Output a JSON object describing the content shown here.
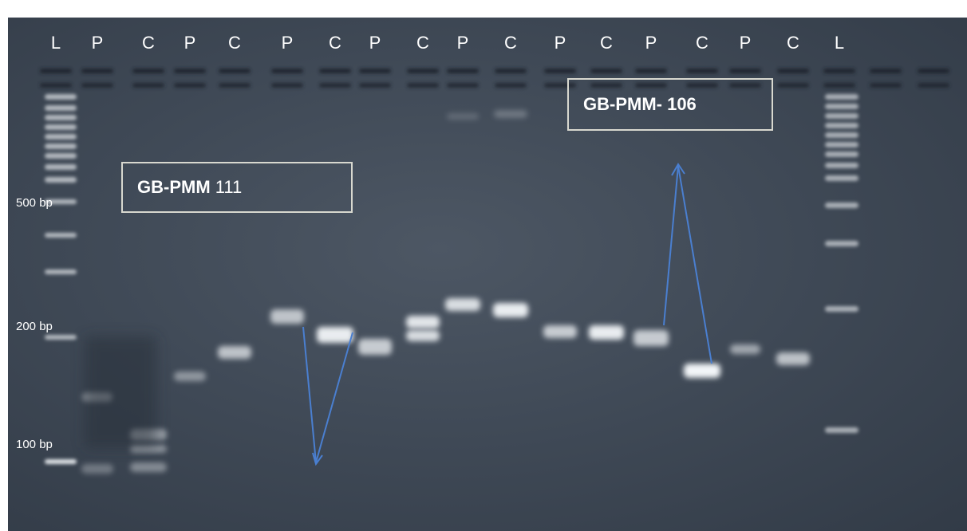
{
  "lane_labels": [
    "L",
    "P",
    "C",
    "P",
    "C",
    "P",
    "C",
    "P",
    "C",
    "P",
    "C",
    "P",
    "C",
    "P",
    "C",
    "P",
    "C",
    "L"
  ],
  "size_markers": [
    "500 bp",
    "200 bp",
    "100 bp"
  ],
  "samples": [
    {
      "name_bold": "GB-PMM",
      "name_rest": " 111"
    },
    {
      "name_bold": "GB-PMM- 106",
      "name_rest": ""
    }
  ],
  "colors": {
    "gel_background": "#3b4552",
    "band": "#f2f5f8",
    "annotation_arrow": "#4a7fd0",
    "label_text": "#ffffff",
    "box_border": "#d8d8cf"
  }
}
